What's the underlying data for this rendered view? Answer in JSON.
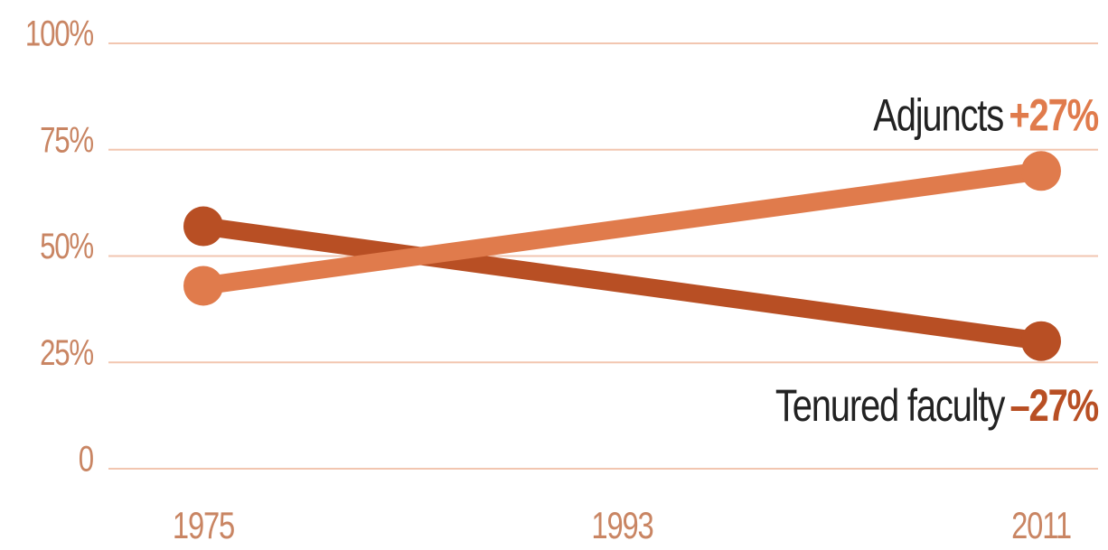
{
  "chart_data": {
    "type": "line",
    "x": [
      1975,
      2011
    ],
    "xlim": [
      1975,
      2011
    ],
    "xticks": [
      1975,
      1993,
      2011
    ],
    "ylim": [
      0,
      100
    ],
    "yticks": [
      0,
      {
        "value": 25,
        "label": "25%"
      },
      {
        "value": 50,
        "label": "50%"
      },
      {
        "value": 75,
        "label": "75%"
      },
      {
        "value": 100,
        "label": "100%"
      }
    ],
    "grid": true,
    "series": [
      {
        "name": "Tenured faculty",
        "color": "#b84f24",
        "values": [
          57,
          30
        ],
        "change": "–27%"
      },
      {
        "name": "Adjuncts",
        "color": "#e07b4c",
        "values": [
          43,
          70
        ],
        "change": "+27%"
      }
    ]
  }
}
